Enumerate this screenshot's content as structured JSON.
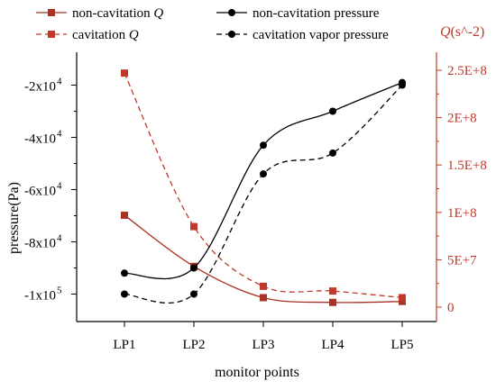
{
  "chart_data": {
    "type": "line",
    "categories": [
      "LP1",
      "LP2",
      "LP3",
      "LP4",
      "LP5"
    ],
    "xlabel": "monitor points",
    "ylabel_left": "pressure(Pa)",
    "ylabel_right": "Q(s^-2)",
    "ylim_left": [
      -105000,
      -15000
    ],
    "ylim_right": [
      -8000000,
      260000000
    ],
    "left_ticks": [
      {
        "value": -20000,
        "label": "-2x10",
        "exp": "4"
      },
      {
        "value": -40000,
        "label": "-4x10",
        "exp": "4"
      },
      {
        "value": -60000,
        "label": "-6x10",
        "exp": "4"
      },
      {
        "value": -80000,
        "label": "-8x10",
        "exp": "4"
      },
      {
        "value": -100000,
        "label": "-1x10",
        "exp": "5"
      }
    ],
    "right_ticks": [
      {
        "value": 0,
        "label": "0"
      },
      {
        "value": 50000000,
        "label": "5E+7"
      },
      {
        "value": 100000000,
        "label": "1E+8"
      },
      {
        "value": 150000000,
        "label": "1.5E+8"
      },
      {
        "value": 200000000,
        "label": "2E+8"
      },
      {
        "value": 250000000,
        "label": "2.5E+8"
      }
    ],
    "grid": false,
    "legend_position": "top",
    "series": [
      {
        "name": "non-cavitation Q",
        "legend_main": "non-cavitation ",
        "legend_italic": "Q",
        "axis": "right",
        "color": "#a93226",
        "line": "solid",
        "marker": "square",
        "values": [
          97000000,
          43000000,
          10000000,
          5000000,
          6000000
        ]
      },
      {
        "name": "cavitation Q",
        "legend_main": "cavitation ",
        "legend_italic": "Q",
        "axis": "right",
        "color": "#c0392b",
        "line": "dashed",
        "marker": "square",
        "values": [
          247000000,
          85000000,
          22000000,
          17000000,
          10000000
        ]
      },
      {
        "name": "non-cavitation pressure",
        "legend_main": "non-cavitation pressure",
        "legend_italic": "",
        "axis": "left",
        "color": "#000000",
        "line": "solid",
        "marker": "circle",
        "values": [
          -92000,
          -90000,
          -43000,
          -30000,
          -19000
        ]
      },
      {
        "name": "cavitation vapor pressure",
        "legend_main": "cavitation vapor pressure",
        "legend_italic": "",
        "axis": "left",
        "color": "#000000",
        "line": "dashed",
        "marker": "circle",
        "values": [
          -100000,
          -100000,
          -54000,
          -46000,
          -20000
        ]
      }
    ]
  }
}
